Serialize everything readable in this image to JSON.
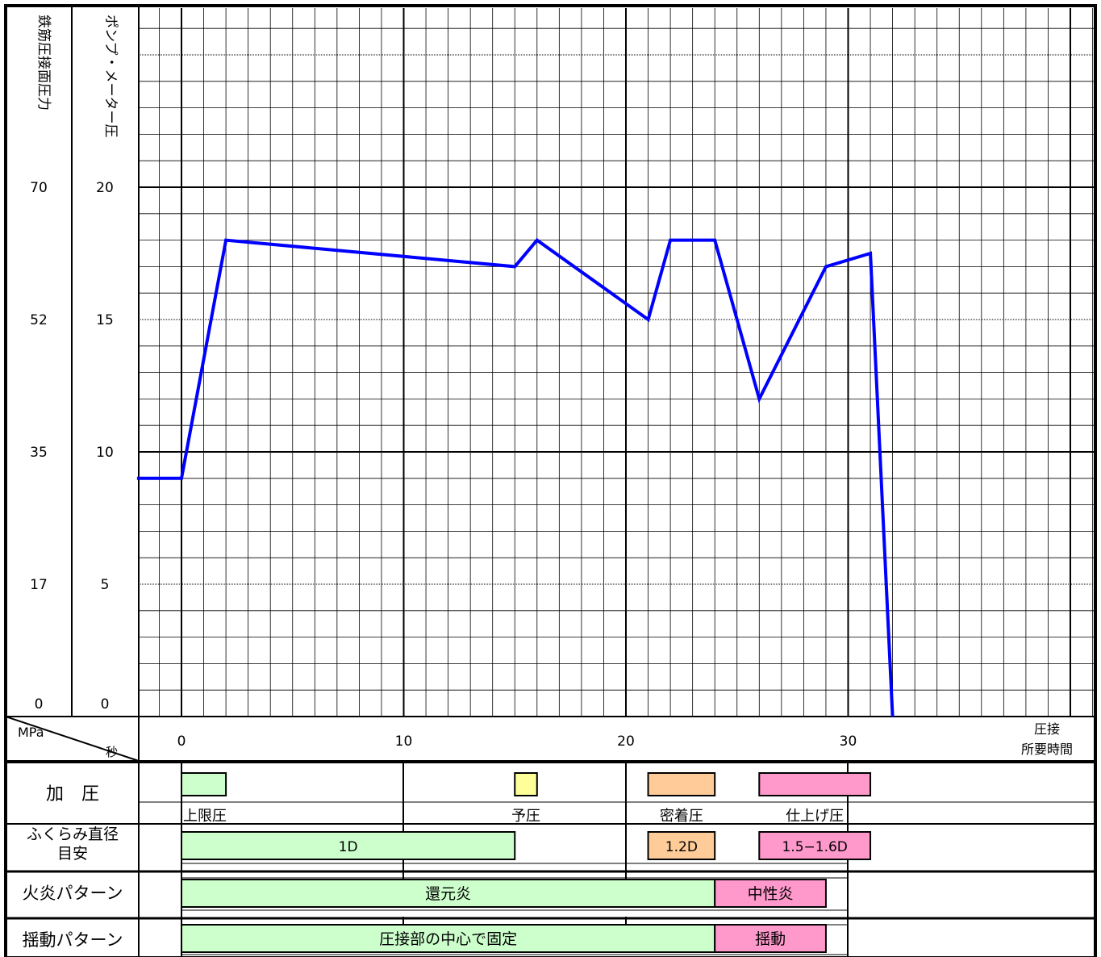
{
  "chart_data": {
    "type": "line",
    "left_axis_header": "鉄筋圧接面圧力",
    "right_axis_header": "ポンプ・メーター圧",
    "left_ticks": [
      "0",
      "17",
      "35",
      "52",
      "70"
    ],
    "right_ticks": [
      "0",
      "5",
      "10",
      "15",
      "20"
    ],
    "unit_pressure": "MPa",
    "unit_time": "秒",
    "x_ticks": [
      "0",
      "10",
      "20",
      "30"
    ],
    "x_label": "圧接所要時間",
    "xlim": [
      -2,
      41
    ],
    "ylim": [
      0,
      26
    ],
    "line_color": "#0000ff",
    "series": [
      {
        "x": [
          -2,
          0,
          2,
          15,
          16,
          21,
          22,
          24,
          26,
          29,
          31,
          32
        ],
        "y": [
          9,
          9,
          18,
          17,
          18,
          15,
          18,
          18,
          12,
          17,
          17.5,
          0
        ]
      }
    ]
  },
  "rows": {
    "pressure": {
      "label": "加　圧",
      "stages": [
        {
          "label": "上限圧",
          "color": "#ccffcc",
          "start": 0,
          "end": 2
        },
        {
          "label": "予圧",
          "color": "#ffff99",
          "start": 15,
          "end": 16
        },
        {
          "label": "密着圧",
          "color": "#ffcc99",
          "start": 21,
          "end": 24
        },
        {
          "label": "仕上げ圧",
          "color": "#ff99cc",
          "start": 26,
          "end": 31
        }
      ]
    },
    "bulge": {
      "label_1": "ふくらみ直径",
      "label_2": "目安",
      "segments": [
        {
          "label": "1D",
          "color": "#ccffcc",
          "start": 0,
          "end": 15
        },
        {
          "label": "1.2D",
          "color": "#ffcc99",
          "start": 21,
          "end": 24
        },
        {
          "label": "1.5−1.6D",
          "color": "#ff99cc",
          "start": 26,
          "end": 31
        }
      ]
    },
    "flame": {
      "label": "火炎パターン",
      "segments": [
        {
          "label": "還元炎",
          "color": "#ccffcc",
          "start": 0,
          "end": 24
        },
        {
          "label": "中性炎",
          "color": "#ff99cc",
          "start": 24,
          "end": 29
        }
      ]
    },
    "swing": {
      "label": "揺動パターン",
      "segments": [
        {
          "label": "圧接部の中心で固定",
          "color": "#ccffcc",
          "start": 0,
          "end": 24
        },
        {
          "label": "揺動",
          "color": "#ff99cc",
          "start": 24,
          "end": 29
        }
      ]
    }
  }
}
